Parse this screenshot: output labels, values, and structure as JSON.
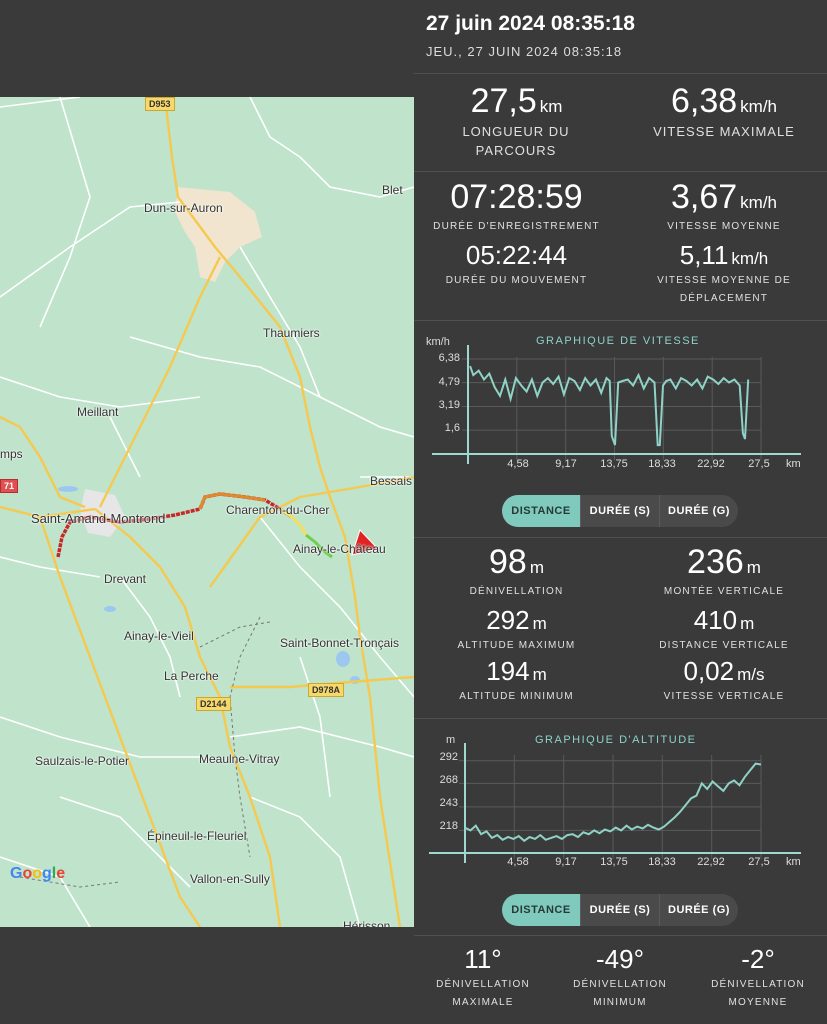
{
  "header": {
    "title": "27 juin 2024 08:35:18",
    "subtitle": "JEU., 27 JUIN 2024 08:35:18"
  },
  "map": {
    "places": [
      "Dun-sur-Auron",
      "Blet",
      "Thaumiers",
      "Meillant",
      "mps",
      "Bessais",
      "Saint-Amand-Montrond",
      "Charenton-du-Cher",
      "Ainay-le-Château",
      "Drevant",
      "Ainay-le-Vieil",
      "Saint-Bonnet-Tronçais",
      "La Perche",
      "Saulzais-le-Potier",
      "Meaulne-Vitray",
      "Épineuil-le-Fleuriel",
      "Vallon-en-Sully",
      "Hérisson"
    ],
    "roads": [
      "D953",
      "D2144",
      "D978A",
      "71"
    ],
    "attribution": "Google"
  },
  "stats1": {
    "distance": {
      "value": "27,5",
      "unit": "km",
      "label": "LONGUEUR DU PARCOURS"
    },
    "max_speed": {
      "value": "6,38",
      "unit": "km/h",
      "label": "VITESSE MAXIMALE"
    }
  },
  "stats2": {
    "record_duration": {
      "value": "07:28:59",
      "label": "DURÉE D'ENREGISTREMENT"
    },
    "avg_speed": {
      "value": "3,67",
      "unit": "km/h",
      "label": "VITESSE MOYENNE"
    },
    "moving_duration": {
      "value": "05:22:44",
      "label": "DURÉE DU MOUVEMENT"
    },
    "avg_moving_speed": {
      "value": "5,11",
      "unit": "km/h",
      "label": "VITESSE MOYENNE DE DÉPLACEMENT"
    }
  },
  "speed_chart": {
    "title": "GRAPHIQUE DE VITESSE",
    "y_unit": "km/h",
    "x_unit": "km",
    "yticks": [
      "6,38",
      "4,79",
      "3,19",
      "1,6"
    ],
    "xticks": [
      "4,58",
      "9,17",
      "13,75",
      "18,33",
      "22,92",
      "27,5"
    ]
  },
  "tabs1": [
    "DISTANCE",
    "DURÉE (S)",
    "DURÉE (G)"
  ],
  "elev_stats": {
    "gain_total": {
      "value": "98",
      "unit": "m",
      "label": "DÉNIVELLATION"
    },
    "ascent": {
      "value": "236",
      "unit": "m",
      "label": "MONTÉE VERTICALE"
    },
    "alt_max": {
      "value": "292",
      "unit": "m",
      "label": "ALTITUDE MAXIMUM"
    },
    "vert_dist": {
      "value": "410",
      "unit": "m",
      "label": "DISTANCE VERTICALE"
    },
    "alt_min": {
      "value": "194",
      "unit": "m",
      "label": "ALTITUDE MINIMUM"
    },
    "vert_speed": {
      "value": "0,02",
      "unit": "m/s",
      "label": "VITESSE VERTICALE"
    }
  },
  "alt_chart": {
    "title": "GRAPHIQUE D'ALTITUDE",
    "y_unit": "m",
    "x_unit": "km",
    "yticks": [
      "292",
      "268",
      "243",
      "218"
    ],
    "xticks": [
      "4,58",
      "9,17",
      "13,75",
      "18,33",
      "22,92",
      "27,5"
    ]
  },
  "tabs2": [
    "DISTANCE",
    "DURÉE (S)",
    "DURÉE (G)"
  ],
  "slope": {
    "max": {
      "value": "11°",
      "label": "DÉNIVELLATION MAXIMALE"
    },
    "min": {
      "value": "-49°",
      "label": "DÉNIVELLATION MINIMUM"
    },
    "avg": {
      "value": "-2°",
      "label": "DÉNIVELLATION MOYENNE"
    }
  },
  "chart_data": [
    {
      "type": "line",
      "title": "GRAPHIQUE DE VITESSE",
      "xlabel": "km",
      "ylabel": "km/h",
      "xlim": [
        0,
        27.5
      ],
      "ylim": [
        0,
        6.38
      ],
      "x": [
        0.2,
        0.5,
        1.0,
        1.5,
        2.0,
        2.5,
        3.0,
        3.5,
        4.0,
        4.5,
        5.0,
        5.5,
        6.0,
        6.5,
        7.0,
        7.5,
        8.0,
        8.5,
        9.0,
        9.5,
        10.0,
        10.5,
        11.0,
        11.5,
        12.0,
        12.5,
        13.0,
        13.3,
        13.5,
        13.8,
        14.1,
        14.5,
        15.0,
        15.5,
        16.0,
        16.5,
        17.0,
        17.5,
        17.8,
        18.0,
        18.3,
        18.6,
        19.0,
        19.5,
        20.0,
        20.5,
        21.0,
        21.5,
        22.0,
        22.5,
        23.0,
        23.5,
        24.0,
        24.5,
        25.0,
        25.5,
        25.8,
        26.0,
        26.3
      ],
      "series": [
        {
          "values": [
            5.9,
            5.3,
            5.6,
            5.0,
            5.4,
            4.5,
            3.9,
            5.0,
            3.7,
            5.1,
            4.6,
            4.2,
            5.0,
            3.9,
            4.8,
            5.1,
            4.7,
            5.2,
            4.0,
            5.1,
            4.9,
            4.3,
            5.1,
            4.6,
            5.0,
            4.1,
            5.1,
            4.9,
            1.2,
            0.6,
            4.8,
            4.9,
            5.0,
            4.6,
            5.3,
            4.4,
            5.1,
            4.8,
            0.6,
            0.6,
            4.6,
            4.9,
            5.0,
            4.4,
            5.1,
            4.9,
            4.6,
            5.0,
            4.4,
            5.2,
            5.0,
            4.7,
            5.1,
            4.8,
            5.0,
            4.6,
            1.4,
            1.0,
            5.0
          ]
        }
      ]
    },
    {
      "type": "line",
      "title": "GRAPHIQUE D'ALTITUDE",
      "xlabel": "km",
      "ylabel": "m",
      "xlim": [
        0,
        27.5
      ],
      "ylim": [
        194,
        296
      ],
      "x": [
        0,
        0.5,
        1.0,
        1.5,
        2.0,
        2.5,
        3.0,
        3.5,
        4.0,
        4.5,
        5.0,
        5.5,
        6.0,
        6.5,
        7.0,
        7.5,
        8.0,
        8.5,
        9.0,
        9.5,
        10.0,
        10.5,
        11.0,
        11.5,
        12.0,
        12.5,
        13.0,
        13.5,
        14.0,
        14.5,
        15.0,
        15.5,
        16.0,
        16.5,
        17.0,
        17.5,
        18.0,
        18.5,
        19.0,
        19.5,
        20.0,
        20.5,
        21.0,
        21.5,
        22.0,
        22.5,
        23.0,
        23.5,
        24.0,
        24.5,
        25.0,
        25.5,
        26.0,
        26.5,
        27.0,
        27.5
      ],
      "series": [
        {
          "values": [
            221,
            218,
            223,
            214,
            217,
            210,
            213,
            208,
            211,
            209,
            212,
            207,
            211,
            209,
            213,
            208,
            210,
            212,
            209,
            213,
            214,
            211,
            216,
            214,
            218,
            215,
            219,
            217,
            221,
            218,
            223,
            219,
            222,
            220,
            224,
            221,
            219,
            222,
            227,
            232,
            238,
            245,
            252,
            255,
            268,
            262,
            270,
            265,
            260,
            268,
            271,
            266,
            275,
            282,
            289,
            288
          ]
        }
      ]
    }
  ]
}
